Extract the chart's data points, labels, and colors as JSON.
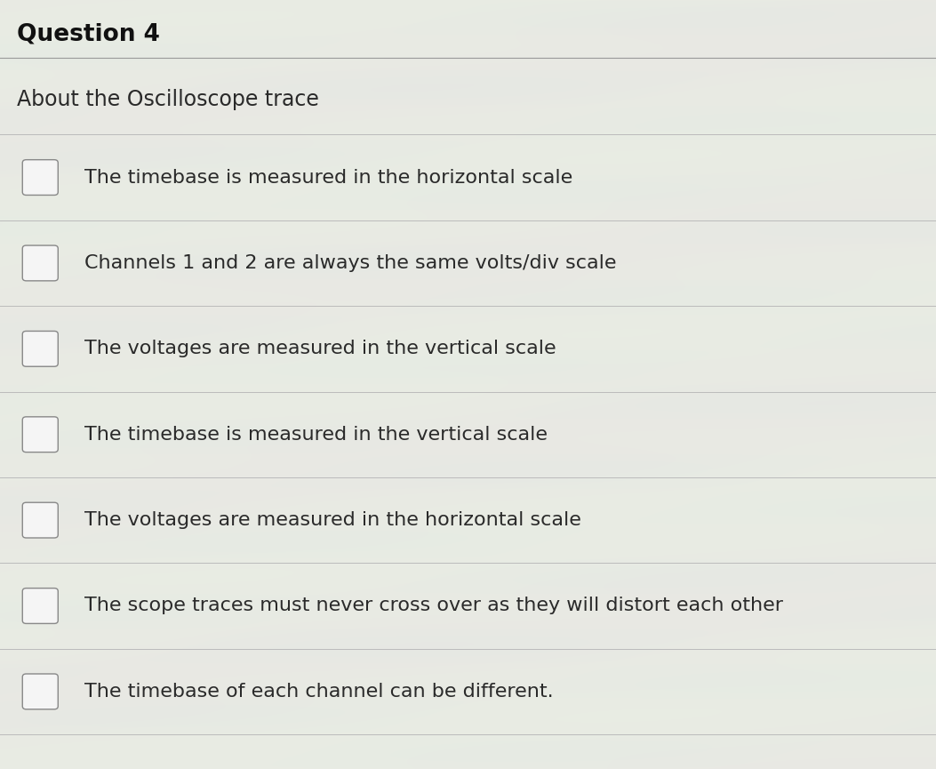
{
  "title": "Question 4",
  "subtitle": "About the Oscilloscope trace",
  "options": [
    "The timebase is measured in the horizontal scale",
    "Channels 1 and 2 are always the same volts/div scale",
    "The voltages are measured in the vertical scale",
    "The timebase is measured in the vertical scale",
    "The voltages are measured in the horizontal scale",
    "The scope traces must never cross over as they will distort each other",
    "The timebase of each channel can be different."
  ],
  "bg_color": "#e8eae5",
  "title_fontsize": 19,
  "subtitle_fontsize": 17,
  "option_fontsize": 16,
  "text_color": "#2a2a2a",
  "checkbox_color": "#f5f5f5",
  "checkbox_edge_color": "#888888",
  "line_color": "#bbbbbb",
  "title_color": "#111111",
  "title_line_color": "#999999"
}
